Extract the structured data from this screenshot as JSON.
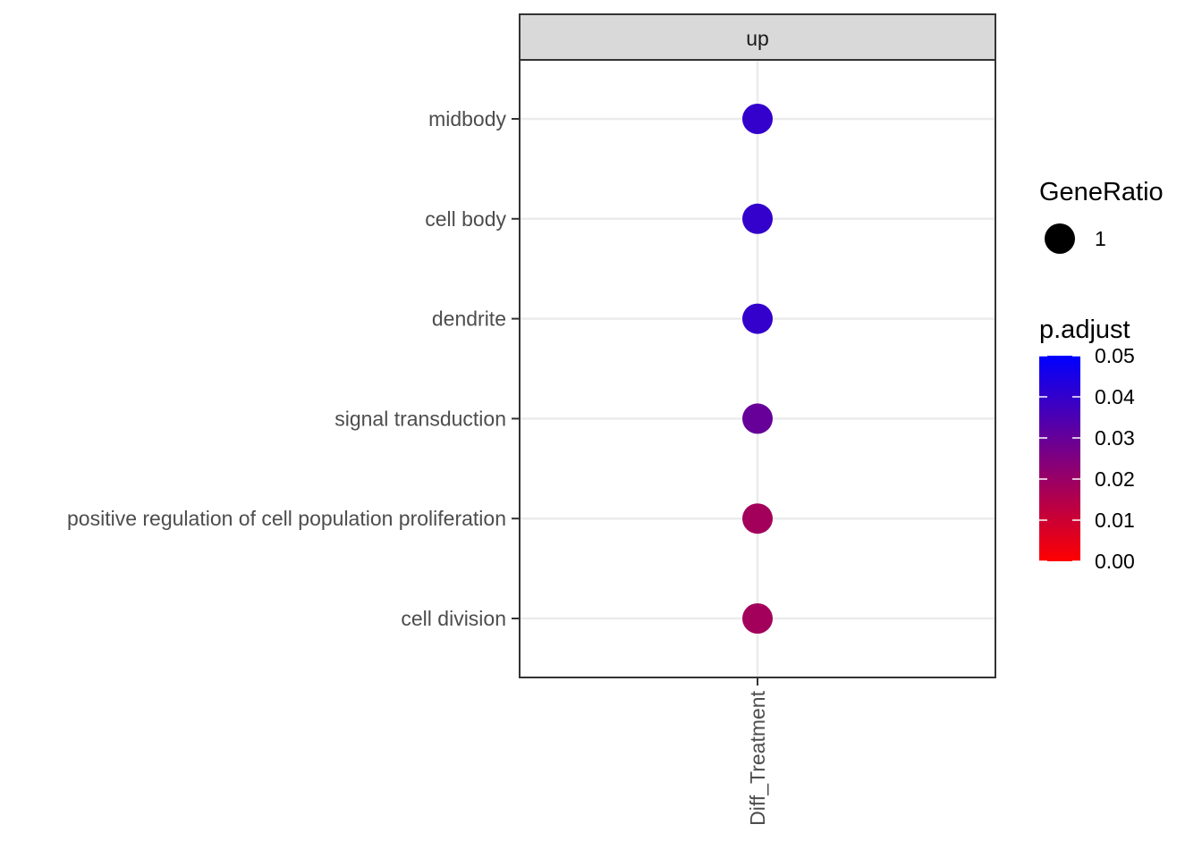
{
  "chart_data": {
    "type": "scatter",
    "facet_label": "up",
    "x_categories": [
      "Diff_Treatment"
    ],
    "y_categories": [
      "midbody",
      "cell body",
      "dendrite",
      "signal transduction",
      "positive regulation of cell population proliferation",
      "cell division"
    ],
    "points": [
      {
        "x": "Diff_Treatment",
        "y": "midbody",
        "gene_ratio": 1,
        "p_adjust": 0.04
      },
      {
        "x": "Diff_Treatment",
        "y": "cell body",
        "gene_ratio": 1,
        "p_adjust": 0.04
      },
      {
        "x": "Diff_Treatment",
        "y": "dendrite",
        "gene_ratio": 1,
        "p_adjust": 0.04
      },
      {
        "x": "Diff_Treatment",
        "y": "signal transduction",
        "gene_ratio": 1,
        "p_adjust": 0.03
      },
      {
        "x": "Diff_Treatment",
        "y": "positive regulation of cell population proliferation",
        "gene_ratio": 1,
        "p_adjust": 0.018
      },
      {
        "x": "Diff_Treatment",
        "y": "cell division",
        "gene_ratio": 1,
        "p_adjust": 0.018
      }
    ],
    "size_legend": {
      "title": "GeneRatio",
      "values": [
        1
      ],
      "labels": [
        "1"
      ]
    },
    "color_legend": {
      "title": "p.adjust",
      "range": [
        0.0,
        0.05
      ],
      "ticks": [
        0.05,
        0.04,
        0.03,
        0.02,
        0.01,
        0.0
      ],
      "tick_labels": [
        "0.05",
        "0.04",
        "0.03",
        "0.02",
        "0.01",
        "0.00"
      ],
      "low_color": "#ff0000",
      "high_color": "#0000ff"
    },
    "grid": true,
    "legend_position": "right"
  }
}
